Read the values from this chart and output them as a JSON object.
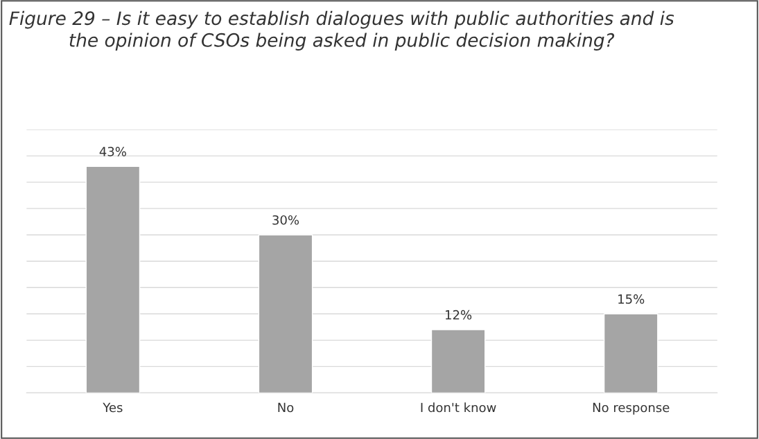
{
  "chart_data": {
    "type": "bar",
    "title": "Figure 29 – Is it easy to establish dialogues with public authorities and is the opinion of CSOs being asked in public decision making?",
    "categories": [
      "Yes",
      "No",
      "I don't know",
      "No response"
    ],
    "values": [
      43,
      30,
      12,
      15
    ],
    "color": "#a5a5a5",
    "value_labels": [
      "43%",
      "30%",
      "12%",
      "15%"
    ],
    "ylim": [
      0,
      50
    ],
    "yticks": [
      0,
      5,
      10,
      15,
      20,
      25,
      30,
      35,
      40,
      45,
      50
    ],
    "tick_labels": "x",
    "grid": "y",
    "legend": false
  }
}
